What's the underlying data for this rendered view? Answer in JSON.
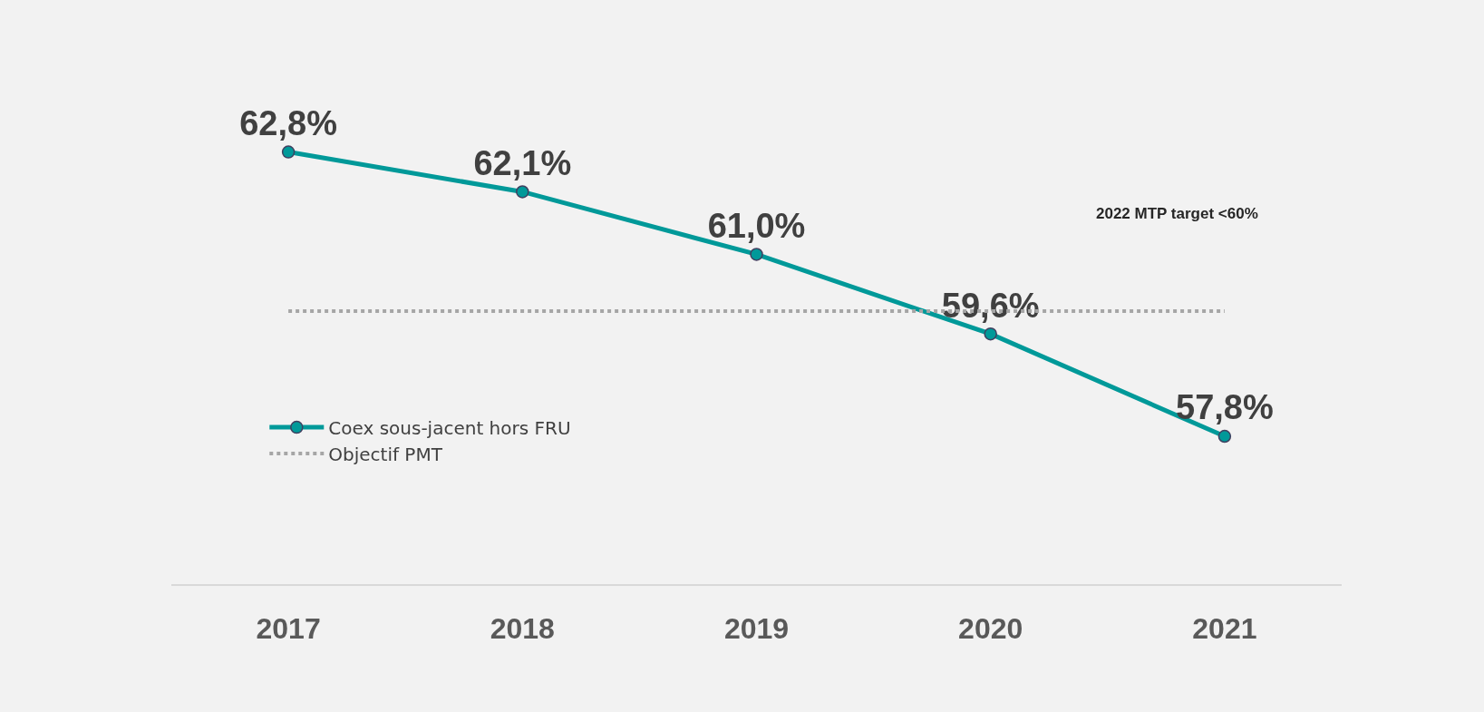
{
  "chart_data": {
    "type": "line",
    "categories": [
      "2017",
      "2018",
      "2019",
      "2020",
      "2021"
    ],
    "series": [
      {
        "name": "Coex sous-jacent hors FRU",
        "color": "#009999",
        "values": [
          62.8,
          62.1,
          61.0,
          59.6,
          57.8
        ],
        "marker": "circle",
        "line_style": "solid",
        "value_labels": [
          "62,8%",
          "62,1%",
          "61,0%",
          "59,6%",
          "57,8%"
        ]
      },
      {
        "name": "Objectif PMT",
        "color": "#a6a6a6",
        "values": [
          60,
          60,
          60,
          60,
          60
        ],
        "marker": "none",
        "line_style": "dotted"
      }
    ],
    "tick_labels": "x",
    "grid": false,
    "legend": "left",
    "annotations": [
      "2022 MTP target <60%"
    ]
  }
}
